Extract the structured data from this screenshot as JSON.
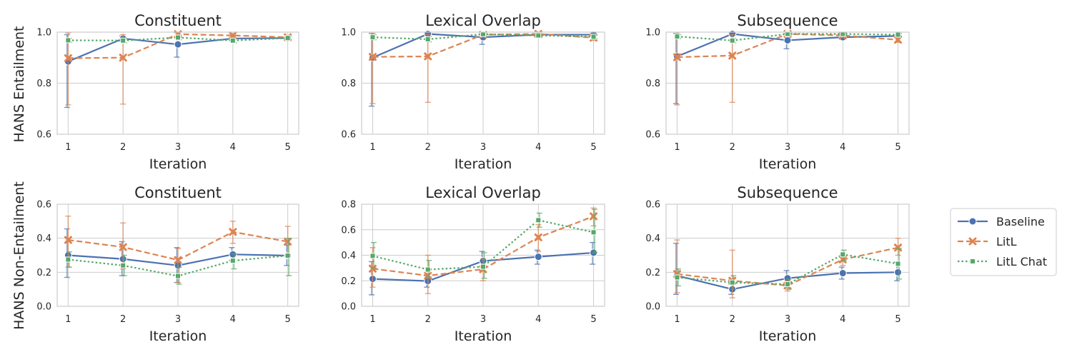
{
  "figure": {
    "row_labels": [
      "HANS Entailment",
      "HANS Non-Entailment"
    ],
    "legend": {
      "placement": "right",
      "entries": [
        "Baseline",
        "LitL",
        "LitL Chat"
      ]
    }
  },
  "series_styles": [
    {
      "name": "Baseline",
      "color": "#4c72b0",
      "marker": "circle",
      "dash": "solid"
    },
    {
      "name": "LitL",
      "color": "#dd8452",
      "marker": "x",
      "dash": "dashed"
    },
    {
      "name": "LitL Chat",
      "color": "#55a868",
      "marker": "square",
      "dash": "dotted"
    }
  ],
  "chart_data": [
    {
      "type": "line",
      "title": "Constituent",
      "xlabel": "Iteration",
      "ylabel": "HANS Entailment",
      "x": [
        1,
        2,
        3,
        4,
        5
      ],
      "ylim": [
        0.6,
        1.0
      ],
      "yticks": [
        0.6,
        0.8,
        1.0
      ],
      "grid": true,
      "series": [
        {
          "name": "Baseline",
          "values": [
            0.885,
            0.975,
            0.952,
            0.975,
            0.977
          ],
          "err_low": [
            0.705,
            0.965,
            0.902,
            0.968,
            0.972
          ],
          "err_high": [
            0.99,
            0.985,
            0.998,
            0.982,
            0.982
          ]
        },
        {
          "name": "LitL",
          "values": [
            0.898,
            0.9,
            0.992,
            0.987,
            0.98
          ],
          "err_low": [
            0.715,
            0.718,
            0.985,
            0.98,
            0.975
          ],
          "err_high": [
            0.997,
            0.99,
            0.998,
            0.993,
            0.986
          ]
        },
        {
          "name": "LitL Chat",
          "values": [
            0.968,
            0.967,
            0.979,
            0.967,
            0.977
          ],
          "err_low": [
            0.96,
            0.958,
            0.97,
            0.958,
            0.97
          ],
          "err_high": [
            0.976,
            0.976,
            0.988,
            0.976,
            0.984
          ]
        }
      ]
    },
    {
      "type": "line",
      "title": "Lexical Overlap",
      "xlabel": "Iteration",
      "ylabel": "",
      "x": [
        1,
        2,
        3,
        4,
        5
      ],
      "ylim": [
        0.6,
        1.0
      ],
      "yticks": [
        0.6,
        0.8,
        1.0
      ],
      "grid": true,
      "series": [
        {
          "name": "Baseline",
          "values": [
            0.9,
            0.993,
            0.98,
            0.99,
            0.99
          ],
          "err_low": [
            0.71,
            0.988,
            0.952,
            0.985,
            0.985
          ],
          "err_high": [
            0.995,
            0.998,
            0.998,
            0.995,
            0.995
          ]
        },
        {
          "name": "LitL",
          "values": [
            0.903,
            0.905,
            0.99,
            0.993,
            0.978
          ],
          "err_low": [
            0.72,
            0.725,
            0.982,
            0.988,
            0.968
          ],
          "err_high": [
            0.995,
            0.99,
            0.997,
            0.997,
            0.988
          ]
        },
        {
          "name": "LitL Chat",
          "values": [
            0.98,
            0.972,
            0.992,
            0.987,
            0.982
          ],
          "err_low": [
            0.97,
            0.962,
            0.985,
            0.98,
            0.975
          ],
          "err_high": [
            0.99,
            0.982,
            0.998,
            0.994,
            0.99
          ]
        }
      ]
    },
    {
      "type": "line",
      "title": "Subsequence",
      "xlabel": "Iteration",
      "ylabel": "",
      "x": [
        1,
        2,
        3,
        4,
        5
      ],
      "ylim": [
        0.6,
        1.0
      ],
      "yticks": [
        0.6,
        0.8,
        1.0
      ],
      "grid": true,
      "series": [
        {
          "name": "Baseline",
          "values": [
            0.905,
            0.993,
            0.968,
            0.98,
            0.985
          ],
          "err_low": [
            0.72,
            0.988,
            0.935,
            0.972,
            0.98
          ],
          "err_high": [
            0.995,
            0.998,
            0.995,
            0.99,
            0.99
          ]
        },
        {
          "name": "LitL",
          "values": [
            0.902,
            0.908,
            0.993,
            0.987,
            0.97
          ],
          "err_low": [
            0.715,
            0.725,
            0.985,
            0.98,
            0.96
          ],
          "err_high": [
            0.995,
            0.99,
            0.998,
            0.994,
            0.98
          ]
        },
        {
          "name": "LitL Chat",
          "values": [
            0.983,
            0.967,
            0.993,
            0.993,
            0.99
          ],
          "err_low": [
            0.975,
            0.958,
            0.987,
            0.987,
            0.985
          ],
          "err_high": [
            0.99,
            0.976,
            0.998,
            0.998,
            0.995
          ]
        }
      ]
    },
    {
      "type": "line",
      "title": "Constituent",
      "xlabel": "Iteration",
      "ylabel": "HANS Non-Entailment",
      "x": [
        1,
        2,
        3,
        4,
        5
      ],
      "ylim": [
        0.0,
        0.6
      ],
      "yticks": [
        0.0,
        0.2,
        0.4,
        0.6
      ],
      "grid": true,
      "series": [
        {
          "name": "Baseline",
          "values": [
            0.3,
            0.278,
            0.24,
            0.305,
            0.298
          ],
          "err_low": [
            0.17,
            0.18,
            0.14,
            0.27,
            0.24
          ],
          "err_high": [
            0.455,
            0.38,
            0.345,
            0.345,
            0.36
          ]
        },
        {
          "name": "LitL",
          "values": [
            0.39,
            0.348,
            0.272,
            0.437,
            0.38
          ],
          "err_low": [
            0.23,
            0.22,
            0.14,
            0.37,
            0.29
          ],
          "err_high": [
            0.53,
            0.49,
            0.34,
            0.5,
            0.47
          ]
        },
        {
          "name": "LitL Chat",
          "values": [
            0.275,
            0.24,
            0.178,
            0.268,
            0.298
          ],
          "err_low": [
            0.23,
            0.18,
            0.13,
            0.22,
            0.18
          ],
          "err_high": [
            0.32,
            0.3,
            0.23,
            0.31,
            0.4
          ]
        }
      ]
    },
    {
      "type": "line",
      "title": "Lexical Overlap",
      "xlabel": "Iteration",
      "ylabel": "",
      "x": [
        1,
        2,
        3,
        4,
        5
      ],
      "ylim": [
        0.0,
        0.8
      ],
      "yticks": [
        0.0,
        0.2,
        0.4,
        0.6,
        0.8
      ],
      "grid": true,
      "series": [
        {
          "name": "Baseline",
          "values": [
            0.215,
            0.198,
            0.355,
            0.388,
            0.42
          ],
          "err_low": [
            0.09,
            0.15,
            0.28,
            0.33,
            0.33
          ],
          "err_high": [
            0.35,
            0.24,
            0.43,
            0.44,
            0.5
          ]
        },
        {
          "name": "LitL",
          "values": [
            0.295,
            0.24,
            0.29,
            0.54,
            0.705
          ],
          "err_low": [
            0.15,
            0.1,
            0.2,
            0.43,
            0.63
          ],
          "err_high": [
            0.46,
            0.4,
            0.37,
            0.64,
            0.77
          ]
        },
        {
          "name": "LitL Chat",
          "values": [
            0.395,
            0.288,
            0.31,
            0.675,
            0.58
          ],
          "err_low": [
            0.3,
            0.23,
            0.22,
            0.62,
            0.42
          ],
          "err_high": [
            0.5,
            0.36,
            0.42,
            0.73,
            0.76
          ]
        }
      ]
    },
    {
      "type": "line",
      "title": "Subsequence",
      "xlabel": "Iteration",
      "ylabel": "",
      "x": [
        1,
        2,
        3,
        4,
        5
      ],
      "ylim": [
        0.0,
        0.6
      ],
      "yticks": [
        0.0,
        0.2,
        0.4,
        0.6
      ],
      "grid": true,
      "series": [
        {
          "name": "Baseline",
          "values": [
            0.18,
            0.1,
            0.165,
            0.195,
            0.2
          ],
          "err_low": [
            0.07,
            0.07,
            0.12,
            0.16,
            0.15
          ],
          "err_high": [
            0.37,
            0.13,
            0.21,
            0.23,
            0.26
          ]
        },
        {
          "name": "LitL",
          "values": [
            0.19,
            0.15,
            0.122,
            0.275,
            0.345
          ],
          "err_low": [
            0.08,
            0.05,
            0.09,
            0.24,
            0.3
          ],
          "err_high": [
            0.39,
            0.33,
            0.15,
            0.31,
            0.4
          ]
        },
        {
          "name": "LitL Chat",
          "values": [
            0.17,
            0.14,
            0.13,
            0.305,
            0.25
          ],
          "err_low": [
            0.12,
            0.1,
            0.1,
            0.27,
            0.16
          ],
          "err_high": [
            0.22,
            0.18,
            0.16,
            0.33,
            0.34
          ]
        }
      ]
    }
  ]
}
